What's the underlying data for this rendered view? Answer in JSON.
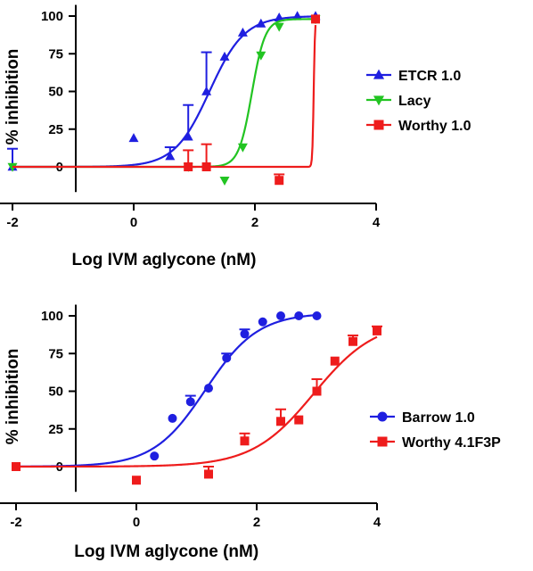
{
  "chart_data": [
    {
      "type": "scatter",
      "xlabel": "Log IVM aglycone (nM)",
      "ylabel": "% inhibition",
      "xlim": [
        -3.2,
        4
      ],
      "ylim": [
        -12,
        105
      ],
      "xticks": [
        -2,
        0,
        2,
        4
      ],
      "yticks": [
        0,
        25,
        50,
        75,
        100
      ],
      "legend_position": "right",
      "series": [
        {
          "name": "ETCR 1.0",
          "marker": "triangle-up",
          "color": "#1f1fe0",
          "points": [
            {
              "x": -2,
              "y": 0,
              "err": 12
            },
            {
              "x": 0,
              "y": 19
            },
            {
              "x": 0.6,
              "y": 7,
              "err": 6
            },
            {
              "x": 0.9,
              "y": 20,
              "err": 21
            },
            {
              "x": 1.2,
              "y": 50,
              "err": 26
            },
            {
              "x": 1.5,
              "y": 73
            },
            {
              "x": 1.8,
              "y": 89
            },
            {
              "x": 2.1,
              "y": 95
            },
            {
              "x": 2.4,
              "y": 99
            },
            {
              "x": 2.7,
              "y": 100
            },
            {
              "x": 3.0,
              "y": 100
            }
          ],
          "fit": {
            "bottom": 0,
            "top": 100,
            "logEC50": 1.25,
            "hill": 1.5
          }
        },
        {
          "name": "Lacy",
          "marker": "triangle-down",
          "color": "#22c422",
          "points": [
            {
              "x": -2,
              "y": 0
            },
            {
              "x": 0.9,
              "y": 0
            },
            {
              "x": 1.5,
              "y": -9
            },
            {
              "x": 1.8,
              "y": 13
            },
            {
              "x": 2.1,
              "y": 74
            },
            {
              "x": 2.4,
              "y": 93
            },
            {
              "x": 3.0,
              "y": 98
            }
          ],
          "fit": {
            "bottom": 0,
            "top": 98,
            "logEC50": 1.95,
            "hill": 4
          }
        },
        {
          "name": "Worthy 1.0",
          "marker": "square",
          "color": "#ee1c1c",
          "points": [
            {
              "x": 0.9,
              "y": 0,
              "err": 11
            },
            {
              "x": 1.2,
              "y": 0,
              "err": 15
            },
            {
              "x": 2.4,
              "y": -9,
              "err": 4
            },
            {
              "x": 3.0,
              "y": 98
            }
          ],
          "fit": {
            "bottom": 0,
            "top": 100,
            "logEC50": 2.97,
            "hill": 40
          }
        }
      ]
    },
    {
      "type": "scatter",
      "xlabel": "Log IVM aglycone (nM)",
      "ylabel": "% inhibition",
      "xlim": [
        -3.2,
        4
      ],
      "ylim": [
        -12,
        105
      ],
      "xticks": [
        -2,
        0,
        2,
        4
      ],
      "yticks": [
        0,
        25,
        50,
        75,
        100
      ],
      "legend_position": "right",
      "series": [
        {
          "name": "Barrow 1.0",
          "marker": "circle",
          "color": "#1f1fe0",
          "points": [
            {
              "x": 0.3,
              "y": 7
            },
            {
              "x": 0.6,
              "y": 32
            },
            {
              "x": 0.9,
              "y": 43,
              "err": 4
            },
            {
              "x": 1.2,
              "y": 52
            },
            {
              "x": 1.5,
              "y": 72,
              "err": 3
            },
            {
              "x": 1.8,
              "y": 88,
              "err": 3
            },
            {
              "x": 2.1,
              "y": 96
            },
            {
              "x": 2.4,
              "y": 100
            },
            {
              "x": 2.7,
              "y": 100
            },
            {
              "x": 3.0,
              "y": 100
            }
          ],
          "fit": {
            "bottom": 0,
            "top": 102,
            "logEC50": 1.15,
            "hill": 1.0
          }
        },
        {
          "name": "Worthy 4.1F3P",
          "marker": "square",
          "color": "#ee1c1c",
          "points": [
            {
              "x": -2,
              "y": 0
            },
            {
              "x": 0,
              "y": -9
            },
            {
              "x": 1.2,
              "y": -5,
              "err": 5
            },
            {
              "x": 1.8,
              "y": 17,
              "err": 5
            },
            {
              "x": 2.4,
              "y": 30,
              "err": 8
            },
            {
              "x": 2.7,
              "y": 31
            },
            {
              "x": 3.0,
              "y": 50,
              "err": 8
            },
            {
              "x": 3.3,
              "y": 70
            },
            {
              "x": 3.6,
              "y": 83,
              "err": 4
            },
            {
              "x": 4.0,
              "y": 90,
              "err": 3
            }
          ],
          "fit": {
            "bottom": 0,
            "top": 97,
            "logEC50": 2.95,
            "hill": 0.85
          }
        }
      ]
    }
  ]
}
